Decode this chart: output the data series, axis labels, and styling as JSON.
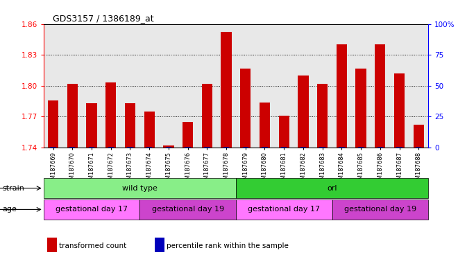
{
  "title": "GDS3157 / 1386189_at",
  "samples": [
    "GSM187669",
    "GSM187670",
    "GSM187671",
    "GSM187672",
    "GSM187673",
    "GSM187674",
    "GSM187675",
    "GSM187676",
    "GSM187677",
    "GSM187678",
    "GSM187679",
    "GSM187680",
    "GSM187681",
    "GSM187682",
    "GSM187683",
    "GSM187684",
    "GSM187685",
    "GSM187686",
    "GSM187687",
    "GSM187688"
  ],
  "transformed_count": [
    1.786,
    1.802,
    1.783,
    1.803,
    1.783,
    1.775,
    1.742,
    1.765,
    1.802,
    1.852,
    1.817,
    1.784,
    1.771,
    1.81,
    1.802,
    1.84,
    1.817,
    1.84,
    1.812,
    1.762
  ],
  "percentile_rank": [
    0,
    0,
    0,
    0,
    0,
    1,
    1,
    1,
    0,
    0,
    0,
    0,
    0,
    0,
    0,
    0,
    0,
    0,
    0,
    0
  ],
  "ylim_left": [
    1.74,
    1.86
  ],
  "ylim_right": [
    0,
    100
  ],
  "yticks_left": [
    1.74,
    1.77,
    1.8,
    1.83,
    1.86
  ],
  "yticks_right": [
    0,
    25,
    50,
    75,
    100
  ],
  "bar_color_red": "#cc0000",
  "bar_color_blue": "#0000bb",
  "strain_labels": [
    {
      "text": "wild type",
      "start": 0,
      "end": 9,
      "color": "#88ee88"
    },
    {
      "text": "orl",
      "start": 10,
      "end": 19,
      "color": "#33cc33"
    }
  ],
  "age_labels": [
    {
      "text": "gestational day 17",
      "start": 0,
      "end": 4,
      "color": "#ff77ff"
    },
    {
      "text": "gestational day 19",
      "start": 5,
      "end": 9,
      "color": "#cc44cc"
    },
    {
      "text": "gestational day 17",
      "start": 10,
      "end": 14,
      "color": "#ff77ff"
    },
    {
      "text": "gestational day 19",
      "start": 15,
      "end": 19,
      "color": "#cc44cc"
    }
  ],
  "legend_items": [
    {
      "color": "#cc0000",
      "label": "transformed count"
    },
    {
      "color": "#0000bb",
      "label": "percentile rank within the sample"
    }
  ],
  "plot_bg": "#e8e8e8",
  "bar_width": 0.55
}
